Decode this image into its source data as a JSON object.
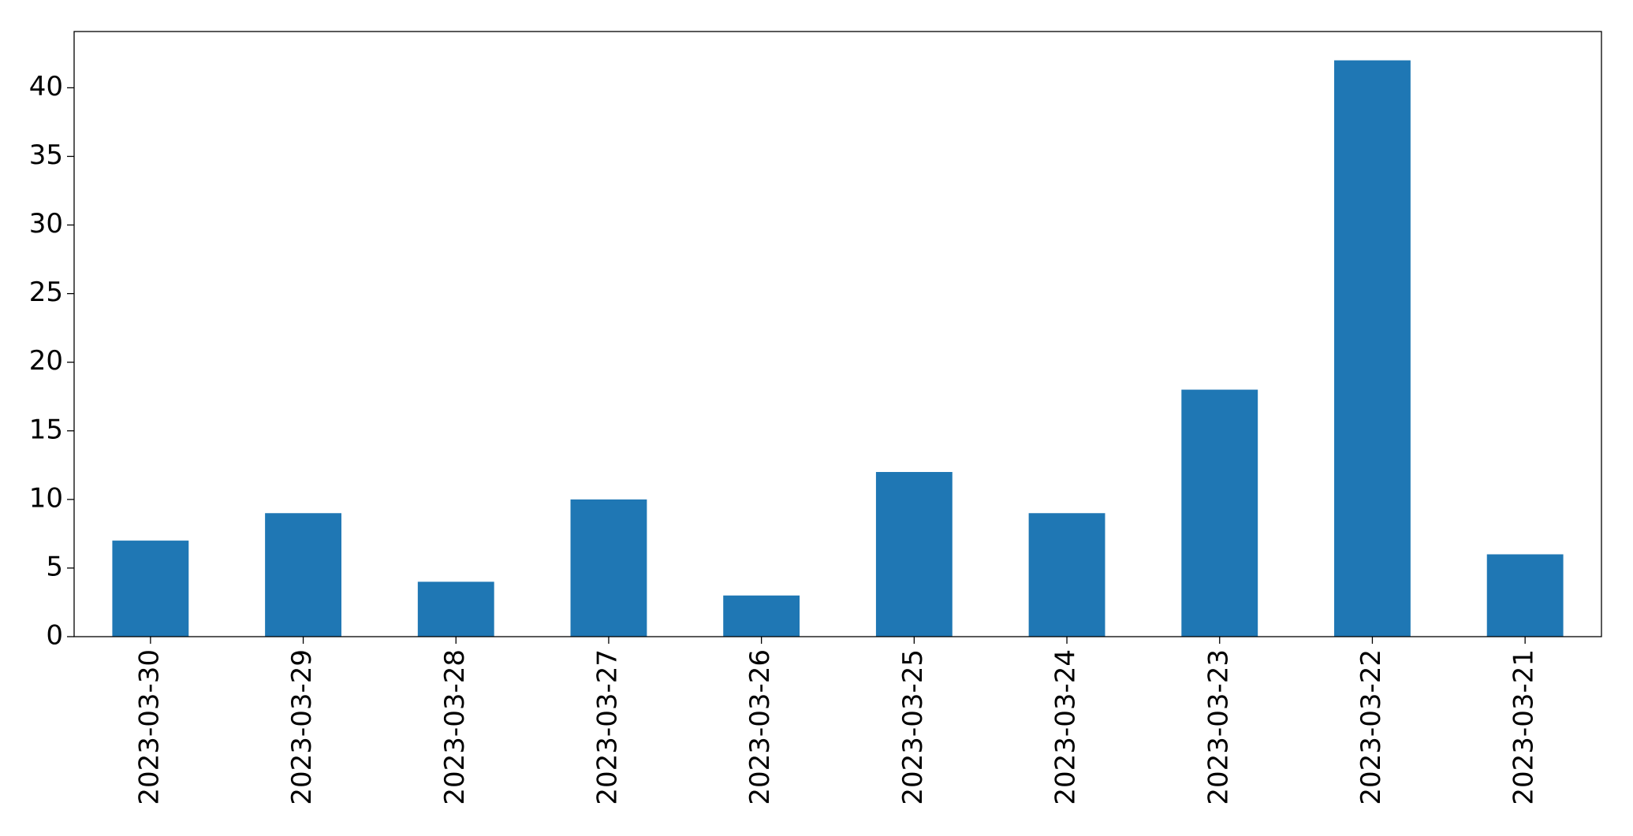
{
  "chart_data": {
    "type": "bar",
    "categories": [
      "2023-03-30",
      "2023-03-29",
      "2023-03-28",
      "2023-03-27",
      "2023-03-26",
      "2023-03-25",
      "2023-03-24",
      "2023-03-23",
      "2023-03-22",
      "2023-03-21"
    ],
    "values": [
      7,
      9,
      4,
      10,
      3,
      12,
      9,
      18,
      42,
      6
    ],
    "color": "#1f77b4",
    "ylim": [
      0,
      44.1
    ],
    "yticks": [
      0,
      5,
      10,
      15,
      20,
      25,
      30,
      35,
      40
    ],
    "grid": false
  }
}
